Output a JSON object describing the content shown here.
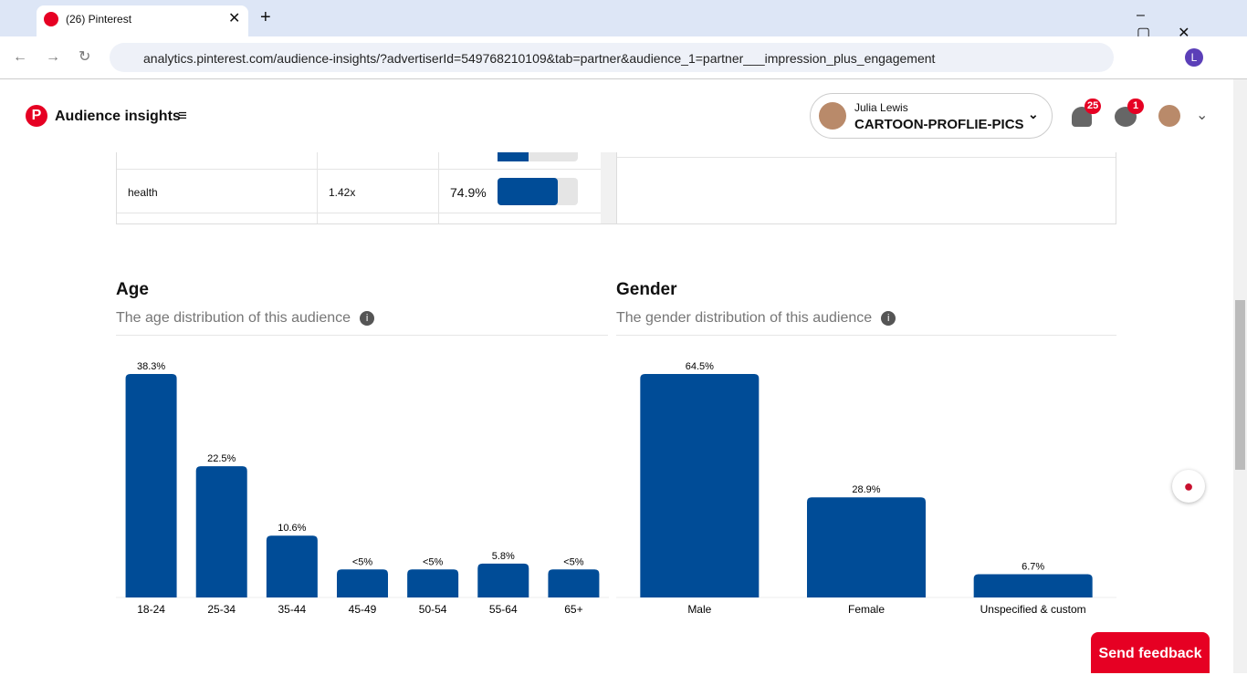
{
  "browser": {
    "tab_title": "(26) Pinterest",
    "url": "analytics.pinterest.com/audience-insights/?advertiserId=549768210109&tab=partner&audience_1=partner___impression_plus_engagement"
  },
  "header": {
    "title": "Audience insights",
    "account_name": "Julia Lewis",
    "account_board": "CARTOON-PROFLIE-PICS",
    "notifications": 25,
    "messages": 1
  },
  "table": {
    "rows": [
      {
        "name": "health",
        "affinity": "1.42x",
        "percent": {
          "value": 74.9,
          "label": "74.9%"
        }
      }
    ]
  },
  "chart_data": [
    {
      "type": "bar",
      "title": "Age",
      "subtitle": "The age distribution of this audience",
      "categories": [
        "18-24",
        "25-34",
        "35-44",
        "45-49",
        "50-54",
        "55-64",
        "65+"
      ],
      "values": [
        38.3,
        22.5,
        10.6,
        4.8,
        4.8,
        5.8,
        4.8
      ],
      "value_labels": [
        "38.3%",
        "22.5%",
        "10.6%",
        "<5%",
        "<5%",
        "5.8%",
        "<5%"
      ],
      "color": "#004c97"
    },
    {
      "type": "bar",
      "title": "Gender",
      "subtitle": "The gender distribution of this audience",
      "categories": [
        "Male",
        "Female",
        "Unspecified & custom"
      ],
      "values": [
        64.5,
        28.9,
        6.7
      ],
      "value_labels": [
        "64.5%",
        "28.9%",
        "6.7%"
      ],
      "color": "#004c97"
    }
  ],
  "feedback": {
    "label": "Send feedback"
  }
}
